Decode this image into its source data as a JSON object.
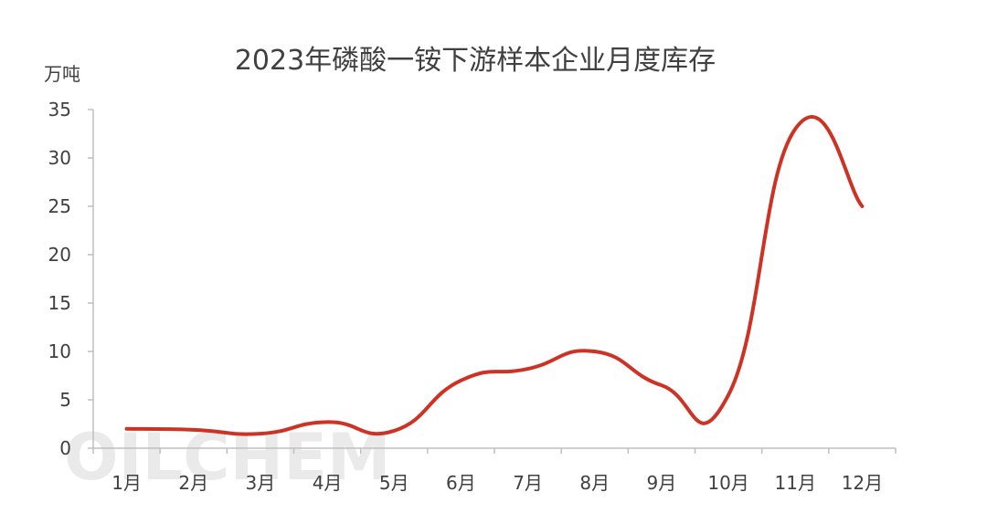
{
  "chart_data": {
    "type": "line",
    "title": "2023年磷酸一铵下游样本企业月度库存",
    "ylabel": "万吨",
    "xlabel": "",
    "categories": [
      "1月",
      "2月",
      "3月",
      "4月",
      "5月",
      "6月",
      "7月",
      "8月",
      "9月",
      "10月",
      "11月",
      "12月"
    ],
    "series": [
      {
        "values": [
          2.0,
          1.9,
          1.5,
          2.7,
          1.8,
          7.0,
          8.2,
          10.0,
          6.5,
          5.5,
          33.0,
          25.0
        ]
      }
    ],
    "ylim": [
      0,
      35
    ],
    "yticks": [
      "0",
      "5",
      "10",
      "15",
      "20",
      "25",
      "30",
      "35"
    ],
    "grid": false,
    "legend": "none",
    "line_color": "#cc3325",
    "axis_color": "#bfbfbf",
    "text_color": "#404040"
  },
  "watermark": {
    "text": "OILCHEM"
  }
}
